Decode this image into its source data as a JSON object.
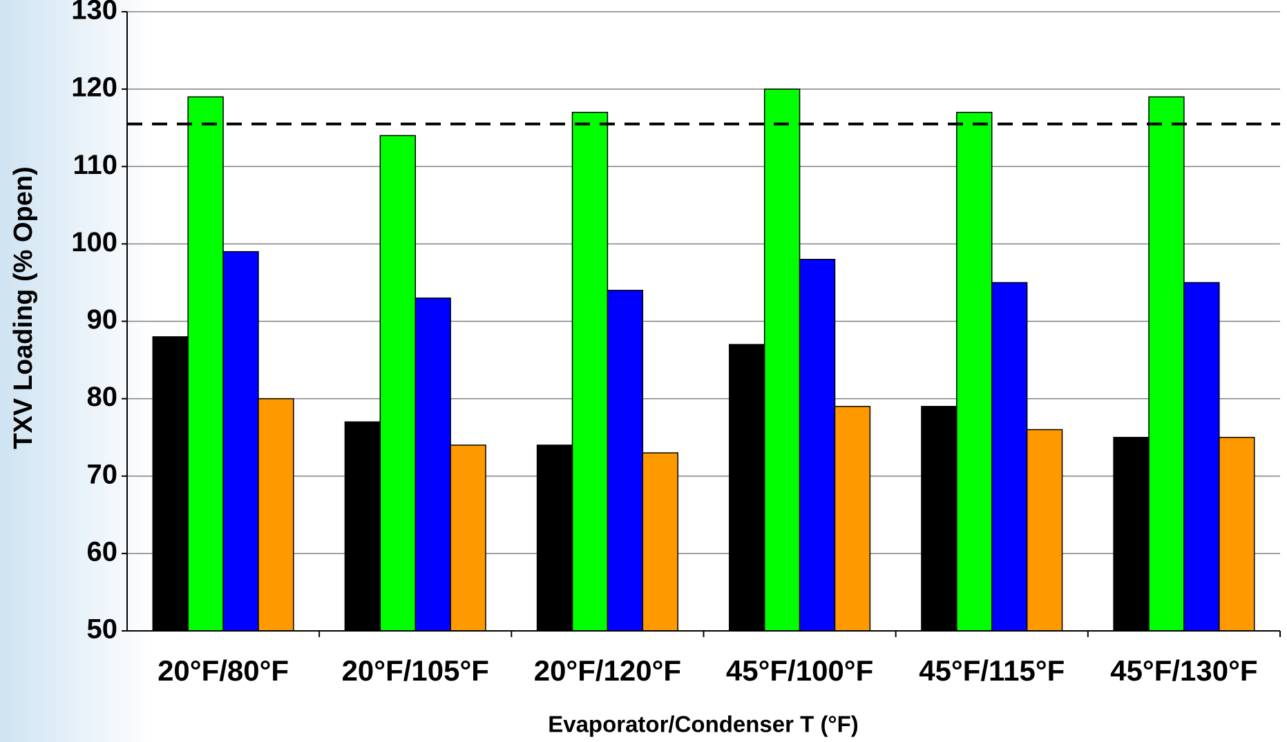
{
  "chart_data": {
    "type": "bar",
    "x_label": "Evaporator/Condenser T (°F)",
    "y_label": "TXV Loading (% Open)",
    "categories": [
      "20°F/80°F",
      "20°F/105°F",
      "20°F/120°F",
      "45°F/100°F",
      "45°F/115°F",
      "45°F/130°F"
    ],
    "series": [
      {
        "color": "#000000",
        "values": [
          88,
          77,
          74,
          87,
          79,
          75
        ]
      },
      {
        "color": "#00ff00",
        "values": [
          119,
          114,
          117,
          120,
          117,
          119
        ]
      },
      {
        "color": "#0000ff",
        "values": [
          99,
          93,
          94,
          98,
          95,
          95
        ]
      },
      {
        "color": "#ff9900",
        "values": [
          80,
          74,
          73,
          79,
          76,
          75
        ]
      }
    ],
    "reference_line": 115.5,
    "ylim": [
      50,
      130
    ],
    "yticks": [
      50,
      60,
      70,
      80,
      90,
      100,
      110,
      120,
      130
    ],
    "grid": true
  }
}
